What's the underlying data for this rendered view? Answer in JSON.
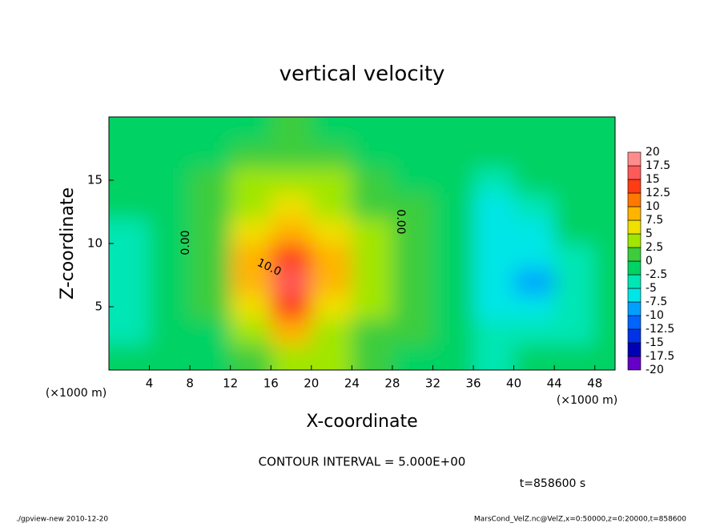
{
  "chart_data": {
    "type": "contour",
    "title": "vertical velocity",
    "x_label": "X-coordinate",
    "y_label": "Z-coordinate",
    "x_unit": "(×1000 m)",
    "y_unit": "(×1000 m)",
    "annotation": "CONTOUR INTERVAL = 5.000E+00",
    "time_label": "t=858600 s",
    "footer_left": "./gpview-new  2010-12-20",
    "footer_right": "MarsCond_VelZ.nc@VelZ,x=0:50000,z=0:20000,t=858600",
    "contour_labels": [
      "0.00",
      "10.0",
      "0.00"
    ],
    "xlim": [
      0,
      50
    ],
    "ylim": [
      0,
      20
    ],
    "xticks": [
      4,
      8,
      12,
      16,
      20,
      24,
      28,
      32,
      36,
      40,
      44,
      48
    ],
    "yticks": [
      5,
      10,
      15
    ],
    "x": [
      2,
      6,
      10,
      14,
      18,
      22,
      26,
      30,
      34,
      38,
      42,
      46,
      50
    ],
    "z": [
      1,
      3,
      5,
      7,
      9,
      11,
      13,
      15,
      17,
      19
    ],
    "values": [
      [
        -2,
        -2,
        0,
        1,
        3,
        3,
        1,
        0,
        -1,
        -3,
        -1,
        -2,
        -1
      ],
      [
        -3,
        -2,
        0,
        3,
        9,
        5,
        2,
        1,
        -1,
        -4,
        -4,
        -3,
        -2
      ],
      [
        -3,
        -2,
        1,
        7,
        13,
        7,
        3,
        1,
        -1,
        -5,
        -6,
        -3,
        -2
      ],
      [
        -3,
        -2,
        1,
        8,
        17,
        10,
        4,
        1,
        -2,
        -6,
        -8,
        -3,
        -2
      ],
      [
        -3,
        -2,
        1,
        8,
        15,
        9,
        4,
        1,
        -2,
        -7,
        -7,
        -3,
        -2
      ],
      [
        -3,
        -2,
        1,
        7,
        9,
        7,
        3,
        1,
        -1,
        -6,
        -5,
        -2,
        -2
      ],
      [
        -2,
        -1,
        1,
        5,
        6,
        5,
        2,
        1,
        -1,
        -5,
        -4,
        -2,
        -1
      ],
      [
        -2,
        -1,
        1,
        3,
        4,
        3,
        1,
        0,
        -1,
        -3,
        -2,
        -1,
        -1
      ],
      [
        -1,
        -1,
        0,
        1,
        2,
        1,
        0,
        0,
        0,
        -1,
        -1,
        -1,
        -1
      ],
      [
        0,
        0,
        0,
        0,
        1,
        0,
        0,
        0,
        0,
        0,
        0,
        0,
        0
      ]
    ],
    "levels": [
      -20,
      -17.5,
      -15,
      -12.5,
      -10,
      -7.5,
      -5,
      -2.5,
      0,
      2.5,
      5,
      7.5,
      10,
      12.5,
      15,
      17.5,
      20
    ],
    "colors": [
      "#6400c8",
      "#0000b4",
      "#0032e6",
      "#0064ff",
      "#00a0ff",
      "#00e6e6",
      "#00e6b4",
      "#00d264",
      "#3ccc3c",
      "#a0e600",
      "#f0e000",
      "#ffb400",
      "#ff7800",
      "#ff3c14",
      "#ff5a5a",
      "#ff8c8c"
    ]
  }
}
